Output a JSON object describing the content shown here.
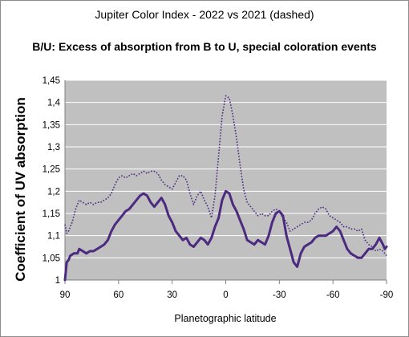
{
  "chart_data": {
    "type": "line",
    "title": "Jupiter Color Index - 2022 vs 2021 (dashed)",
    "subtitle": "B/U: Excess of absorption from B to U, special coloration events",
    "xlabel": "Planetographic latitude",
    "ylabel": "Coefficient of UV absorption",
    "xlim": [
      90,
      -90
    ],
    "ylim": [
      1,
      1.45
    ],
    "x_ticks": [
      90,
      60,
      30,
      0,
      -30,
      -60,
      -90
    ],
    "x_tick_labels": [
      "90",
      "60",
      "30",
      "0",
      "-30",
      "-60",
      "-90"
    ],
    "y_ticks": [
      1,
      1.05,
      1.1,
      1.15,
      1.2,
      1.25,
      1.3,
      1.35,
      1.4,
      1.45
    ],
    "y_tick_labels": [
      "1",
      "1,05",
      "1,1",
      "1,15",
      "1,2",
      "1,25",
      "1,3",
      "1,35",
      "1,4",
      "1,45"
    ],
    "grid": "horizontal",
    "plot_background": "#c0c0c0",
    "gridline_color": "#ffffff",
    "series": [
      {
        "style": "solid",
        "color": "#4b2a80",
        "points": [
          [
            90,
            1.0
          ],
          [
            89,
            1.04
          ],
          [
            88,
            1.045
          ],
          [
            87,
            1.055
          ],
          [
            85,
            1.06
          ],
          [
            83,
            1.06
          ],
          [
            82,
            1.07
          ],
          [
            80,
            1.065
          ],
          [
            78,
            1.06
          ],
          [
            76,
            1.065
          ],
          [
            74,
            1.065
          ],
          [
            72,
            1.07
          ],
          [
            70,
            1.075
          ],
          [
            68,
            1.08
          ],
          [
            66,
            1.09
          ],
          [
            64,
            1.11
          ],
          [
            62,
            1.125
          ],
          [
            60,
            1.135
          ],
          [
            58,
            1.145
          ],
          [
            56,
            1.155
          ],
          [
            54,
            1.16
          ],
          [
            52,
            1.17
          ],
          [
            50,
            1.18
          ],
          [
            48,
            1.19
          ],
          [
            46,
            1.195
          ],
          [
            44,
            1.19
          ],
          [
            42,
            1.175
          ],
          [
            40,
            1.165
          ],
          [
            38,
            1.175
          ],
          [
            36,
            1.185
          ],
          [
            34,
            1.17
          ],
          [
            32,
            1.145
          ],
          [
            30,
            1.13
          ],
          [
            28,
            1.11
          ],
          [
            26,
            1.1
          ],
          [
            24,
            1.09
          ],
          [
            22,
            1.095
          ],
          [
            20,
            1.08
          ],
          [
            18,
            1.075
          ],
          [
            16,
            1.085
          ],
          [
            14,
            1.095
          ],
          [
            12,
            1.09
          ],
          [
            10,
            1.08
          ],
          [
            8,
            1.095
          ],
          [
            6,
            1.12
          ],
          [
            4,
            1.14
          ],
          [
            2,
            1.18
          ],
          [
            0,
            1.2
          ],
          [
            -2,
            1.195
          ],
          [
            -4,
            1.17
          ],
          [
            -6,
            1.155
          ],
          [
            -8,
            1.135
          ],
          [
            -10,
            1.115
          ],
          [
            -12,
            1.09
          ],
          [
            -14,
            1.085
          ],
          [
            -16,
            1.08
          ],
          [
            -18,
            1.09
          ],
          [
            -20,
            1.085
          ],
          [
            -22,
            1.08
          ],
          [
            -24,
            1.1
          ],
          [
            -26,
            1.13
          ],
          [
            -28,
            1.15
          ],
          [
            -30,
            1.155
          ],
          [
            -32,
            1.145
          ],
          [
            -34,
            1.1
          ],
          [
            -36,
            1.07
          ],
          [
            -38,
            1.04
          ],
          [
            -40,
            1.03
          ],
          [
            -42,
            1.06
          ],
          [
            -44,
            1.075
          ],
          [
            -46,
            1.08
          ],
          [
            -48,
            1.085
          ],
          [
            -50,
            1.095
          ],
          [
            -52,
            1.1
          ],
          [
            -54,
            1.1
          ],
          [
            -56,
            1.1
          ],
          [
            -58,
            1.105
          ],
          [
            -60,
            1.11
          ],
          [
            -62,
            1.12
          ],
          [
            -64,
            1.11
          ],
          [
            -66,
            1.09
          ],
          [
            -68,
            1.07
          ],
          [
            -70,
            1.06
          ],
          [
            -72,
            1.055
          ],
          [
            -74,
            1.05
          ],
          [
            -76,
            1.05
          ],
          [
            -78,
            1.06
          ],
          [
            -80,
            1.07
          ],
          [
            -82,
            1.07
          ],
          [
            -84,
            1.08
          ],
          [
            -86,
            1.095
          ],
          [
            -88,
            1.08
          ],
          [
            -89,
            1.07
          ],
          [
            -90,
            1.075
          ]
        ]
      },
      {
        "style": "dotted",
        "color": "#4b2a80",
        "points": [
          [
            90,
            1.125
          ],
          [
            89,
            1.105
          ],
          [
            88,
            1.11
          ],
          [
            86,
            1.13
          ],
          [
            84,
            1.16
          ],
          [
            82,
            1.18
          ],
          [
            80,
            1.175
          ],
          [
            78,
            1.17
          ],
          [
            76,
            1.175
          ],
          [
            74,
            1.17
          ],
          [
            72,
            1.175
          ],
          [
            70,
            1.175
          ],
          [
            68,
            1.18
          ],
          [
            66,
            1.185
          ],
          [
            64,
            1.195
          ],
          [
            62,
            1.215
          ],
          [
            60,
            1.23
          ],
          [
            58,
            1.235
          ],
          [
            56,
            1.23
          ],
          [
            54,
            1.235
          ],
          [
            52,
            1.24
          ],
          [
            50,
            1.235
          ],
          [
            48,
            1.24
          ],
          [
            46,
            1.245
          ],
          [
            44,
            1.24
          ],
          [
            42,
            1.245
          ],
          [
            40,
            1.245
          ],
          [
            38,
            1.24
          ],
          [
            36,
            1.225
          ],
          [
            34,
            1.215
          ],
          [
            32,
            1.21
          ],
          [
            30,
            1.205
          ],
          [
            28,
            1.22
          ],
          [
            26,
            1.235
          ],
          [
            24,
            1.235
          ],
          [
            22,
            1.225
          ],
          [
            20,
            1.195
          ],
          [
            18,
            1.17
          ],
          [
            16,
            1.19
          ],
          [
            14,
            1.2
          ],
          [
            12,
            1.18
          ],
          [
            10,
            1.165
          ],
          [
            8,
            1.14
          ],
          [
            6,
            1.19
          ],
          [
            4,
            1.28
          ],
          [
            2,
            1.37
          ],
          [
            0,
            1.415
          ],
          [
            -2,
            1.41
          ],
          [
            -4,
            1.37
          ],
          [
            -6,
            1.32
          ],
          [
            -8,
            1.26
          ],
          [
            -10,
            1.205
          ],
          [
            -12,
            1.175
          ],
          [
            -14,
            1.165
          ],
          [
            -16,
            1.155
          ],
          [
            -18,
            1.145
          ],
          [
            -20,
            1.15
          ],
          [
            -22,
            1.145
          ],
          [
            -24,
            1.145
          ],
          [
            -26,
            1.155
          ],
          [
            -28,
            1.16
          ],
          [
            -30,
            1.155
          ],
          [
            -32,
            1.14
          ],
          [
            -34,
            1.13
          ],
          [
            -36,
            1.11
          ],
          [
            -38,
            1.115
          ],
          [
            -40,
            1.12
          ],
          [
            -42,
            1.125
          ],
          [
            -44,
            1.13
          ],
          [
            -46,
            1.13
          ],
          [
            -48,
            1.135
          ],
          [
            -50,
            1.15
          ],
          [
            -52,
            1.16
          ],
          [
            -54,
            1.165
          ],
          [
            -56,
            1.16
          ],
          [
            -58,
            1.145
          ],
          [
            -60,
            1.14
          ],
          [
            -62,
            1.135
          ],
          [
            -64,
            1.13
          ],
          [
            -66,
            1.12
          ],
          [
            -68,
            1.12
          ],
          [
            -70,
            1.115
          ],
          [
            -72,
            1.115
          ],
          [
            -74,
            1.11
          ],
          [
            -76,
            1.115
          ],
          [
            -78,
            1.09
          ],
          [
            -80,
            1.08
          ],
          [
            -82,
            1.075
          ],
          [
            -84,
            1.065
          ],
          [
            -86,
            1.07
          ],
          [
            -88,
            1.065
          ],
          [
            -90,
            1.055
          ]
        ]
      }
    ]
  }
}
